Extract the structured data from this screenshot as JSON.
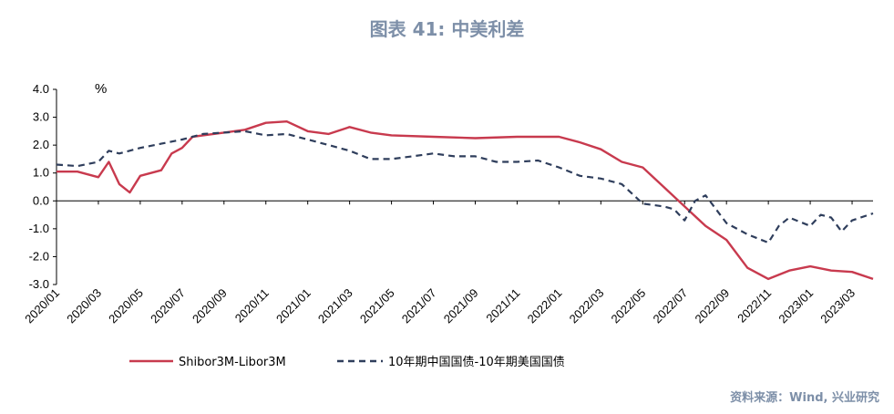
{
  "title": "图表 41: 中美利差",
  "source": "资料来源：Wind, 兴业研究",
  "colors": {
    "series1": "#c83a4e",
    "series2": "#2f3e5c",
    "title": "#7d8fa8"
  },
  "chart_data": {
    "type": "line",
    "ylabel": "%",
    "ylim": [
      -3.0,
      4.0
    ],
    "yticks": [
      "4.0",
      "3.0",
      "2.0",
      "1.0",
      "0.0",
      "-1.0",
      "-2.0",
      "-3.0"
    ],
    "xticks": [
      "2020/01",
      "2020/03",
      "2020/05",
      "2020/07",
      "2020/09",
      "2020/11",
      "2021/01",
      "2021/03",
      "2021/05",
      "2021/07",
      "2021/09",
      "2021/11",
      "2022/01",
      "2022/03",
      "2022/05",
      "2022/07",
      "2022/09",
      "2022/11",
      "2023/01",
      "2023/03"
    ],
    "xlim": [
      "2020/01",
      "2023/04"
    ],
    "grid": false,
    "legend_placement": "bottom",
    "series": [
      {
        "name": "Shibor3M-Libor3M",
        "style": "solid",
        "points": [
          [
            "2020/01",
            1.05
          ],
          [
            "2020/02",
            1.05
          ],
          [
            "2020/03",
            0.85
          ],
          [
            "2020/03.5",
            1.4
          ],
          [
            "2020/04",
            0.6
          ],
          [
            "2020/04.5",
            0.3
          ],
          [
            "2020/05",
            0.9
          ],
          [
            "2020/06",
            1.1
          ],
          [
            "2020/06.5",
            1.7
          ],
          [
            "2020/07",
            1.9
          ],
          [
            "2020/07.5",
            2.3
          ],
          [
            "2020/08",
            2.35
          ],
          [
            "2020/09",
            2.45
          ],
          [
            "2020/10",
            2.55
          ],
          [
            "2020/11",
            2.8
          ],
          [
            "2020/12",
            2.85
          ],
          [
            "2021/01",
            2.5
          ],
          [
            "2021/02",
            2.4
          ],
          [
            "2021/03",
            2.65
          ],
          [
            "2021/04",
            2.45
          ],
          [
            "2021/05",
            2.35
          ],
          [
            "2021/07",
            2.3
          ],
          [
            "2021/09",
            2.25
          ],
          [
            "2021/11",
            2.3
          ],
          [
            "2022/01",
            2.3
          ],
          [
            "2022/02",
            2.1
          ],
          [
            "2022/03",
            1.85
          ],
          [
            "2022/04",
            1.4
          ],
          [
            "2022/05",
            1.2
          ],
          [
            "2022/06",
            0.5
          ],
          [
            "2022/07",
            -0.2
          ],
          [
            "2022/08",
            -0.9
          ],
          [
            "2022/09",
            -1.4
          ],
          [
            "2022/10",
            -2.4
          ],
          [
            "2022/11",
            -2.8
          ],
          [
            "2022/12",
            -2.5
          ],
          [
            "2023/01",
            -2.35
          ],
          [
            "2023/02",
            -2.5
          ],
          [
            "2023/03",
            -2.55
          ],
          [
            "2023/04",
            -2.8
          ]
        ]
      },
      {
        "name": "10年期中国国债-10年期美国国债",
        "style": "dashed",
        "points": [
          [
            "2020/01",
            1.3
          ],
          [
            "2020/02",
            1.25
          ],
          [
            "2020/03",
            1.4
          ],
          [
            "2020/03.5",
            1.8
          ],
          [
            "2020/04",
            1.7
          ],
          [
            "2020/05",
            1.9
          ],
          [
            "2020/06",
            2.05
          ],
          [
            "2020/07",
            2.2
          ],
          [
            "2020/08",
            2.4
          ],
          [
            "2020/09",
            2.45
          ],
          [
            "2020/10",
            2.5
          ],
          [
            "2020/11",
            2.35
          ],
          [
            "2020/12",
            2.4
          ],
          [
            "2021/01",
            2.2
          ],
          [
            "2021/02",
            2.0
          ],
          [
            "2021/03",
            1.8
          ],
          [
            "2021/04",
            1.5
          ],
          [
            "2021/05",
            1.5
          ],
          [
            "2021/06",
            1.6
          ],
          [
            "2021/07",
            1.7
          ],
          [
            "2021/08",
            1.6
          ],
          [
            "2021/09",
            1.6
          ],
          [
            "2021/10",
            1.4
          ],
          [
            "2021/11",
            1.4
          ],
          [
            "2021/12",
            1.45
          ],
          [
            "2022/01",
            1.2
          ],
          [
            "2022/02",
            0.9
          ],
          [
            "2022/03",
            0.8
          ],
          [
            "2022/04",
            0.6
          ],
          [
            "2022/05",
            -0.1
          ],
          [
            "2022/06",
            -0.2
          ],
          [
            "2022/06.5",
            -0.3
          ],
          [
            "2022/07",
            -0.7
          ],
          [
            "2022/07.5",
            0.0
          ],
          [
            "2022/08",
            0.2
          ],
          [
            "2022/09",
            -0.8
          ],
          [
            "2022/10",
            -1.2
          ],
          [
            "2022/11",
            -1.5
          ],
          [
            "2022/11.5",
            -0.9
          ],
          [
            "2022/12",
            -0.6
          ],
          [
            "2023/01",
            -0.9
          ],
          [
            "2023/01.5",
            -0.5
          ],
          [
            "2023/02",
            -0.6
          ],
          [
            "2023/02.5",
            -1.1
          ],
          [
            "2023/03",
            -0.7
          ],
          [
            "2023/04",
            -0.45
          ]
        ]
      }
    ]
  }
}
